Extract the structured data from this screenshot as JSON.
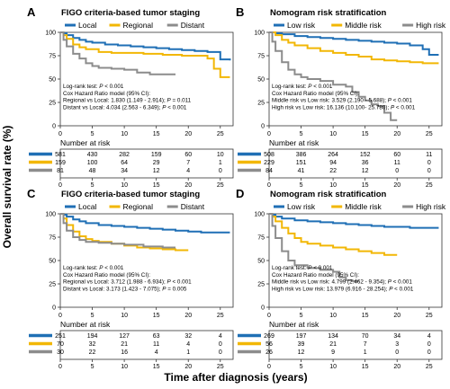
{
  "colors": {
    "blue": "#1f6fb5",
    "yellow": "#f2b705",
    "gray": "#8c8c8c",
    "text": "#000000",
    "axis": "#333333"
  },
  "figure": {
    "ylabel": "Overall survival rate (%)",
    "xlabel": "Time after diagnosis (years)"
  },
  "chart_data": [
    {
      "panel": "A",
      "type": "line",
      "title": "FIGO criteria-based tumor staging",
      "xlim": [
        0,
        27
      ],
      "ylim": [
        0,
        100
      ],
      "xticks": [
        0,
        5,
        10,
        15,
        20,
        25
      ],
      "yticks": [
        "0",
        "25",
        "50",
        "75",
        "100"
      ],
      "series": [
        {
          "name": "Local",
          "color": "blue",
          "points": [
            [
              0,
              100
            ],
            [
              0.5,
              99
            ],
            [
              1,
              97
            ],
            [
              2,
              94
            ],
            [
              3,
              92
            ],
            [
              4,
              90
            ],
            [
              5,
              89
            ],
            [
              7,
              87
            ],
            [
              9,
              86
            ],
            [
              11,
              85
            ],
            [
              13,
              84
            ],
            [
              15,
              83
            ],
            [
              17,
              82
            ],
            [
              19,
              81
            ],
            [
              21,
              80
            ],
            [
              23,
              79
            ],
            [
              25,
              71
            ],
            [
              26.5,
              70
            ]
          ]
        },
        {
          "name": "Regional",
          "color": "yellow",
          "points": [
            [
              0,
              100
            ],
            [
              0.5,
              97
            ],
            [
              1,
              93
            ],
            [
              2,
              87
            ],
            [
              3,
              84
            ],
            [
              4,
              82
            ],
            [
              6,
              79
            ],
            [
              8,
              78
            ],
            [
              10,
              78
            ],
            [
              13,
              77
            ],
            [
              16,
              76
            ],
            [
              19,
              75
            ],
            [
              21,
              75
            ],
            [
              22,
              75
            ],
            [
              23,
              72
            ],
            [
              24,
              61
            ],
            [
              25,
              52
            ],
            [
              26.5,
              52
            ]
          ]
        },
        {
          "name": "Distant",
          "color": "gray",
          "points": [
            [
              0,
              100
            ],
            [
              0.5,
              92
            ],
            [
              1,
              85
            ],
            [
              2,
              77
            ],
            [
              3,
              72
            ],
            [
              4,
              67
            ],
            [
              5,
              64
            ],
            [
              6,
              62
            ],
            [
              8,
              61
            ],
            [
              10,
              60
            ],
            [
              12,
              57
            ],
            [
              14,
              55
            ],
            [
              15,
              55
            ],
            [
              17,
              55
            ],
            [
              18,
              55
            ],
            [
              18,
              55
            ]
          ]
        }
      ],
      "stats": [
        "Log-rank test: P < 0.001",
        "Cox Hazard Ratio model (95% CI):",
        "Regional vs Local: 1.830 (1.149 - 2.914); P = 0.011",
        "Distant vs Local: 4.034 (2.563 - 6.349); P < 0.001"
      ],
      "risk_title": "Number at risk",
      "risk_rows": [
        {
          "color": "blue",
          "values": [
            "581",
            "430",
            "282",
            "159",
            "60",
            "10"
          ]
        },
        {
          "color": "yellow",
          "values": [
            "159",
            "100",
            "64",
            "29",
            "7",
            "1"
          ]
        },
        {
          "color": "gray",
          "values": [
            "81",
            "48",
            "34",
            "12",
            "4",
            "0"
          ]
        }
      ]
    },
    {
      "panel": "B",
      "type": "line",
      "title": "Nomogram risk stratification",
      "xlim": [
        0,
        27
      ],
      "ylim": [
        0,
        100
      ],
      "xticks": [
        0,
        5,
        10,
        15,
        20,
        25
      ],
      "yticks": [
        "0",
        "25",
        "50",
        "75",
        "100"
      ],
      "series": [
        {
          "name": "Low risk",
          "color": "blue",
          "points": [
            [
              0,
              100
            ],
            [
              1,
              99
            ],
            [
              2,
              98
            ],
            [
              4,
              96
            ],
            [
              6,
              95
            ],
            [
              8,
              94
            ],
            [
              10,
              93
            ],
            [
              12,
              92
            ],
            [
              14,
              91
            ],
            [
              16,
              90
            ],
            [
              18,
              89
            ],
            [
              20,
              88
            ],
            [
              22,
              86
            ],
            [
              24,
              82
            ],
            [
              25,
              76
            ],
            [
              26.5,
              76
            ]
          ]
        },
        {
          "name": "Middle risk",
          "color": "yellow",
          "points": [
            [
              0,
              100
            ],
            [
              1,
              97
            ],
            [
              2,
              92
            ],
            [
              3,
              89
            ],
            [
              4,
              86
            ],
            [
              6,
              83
            ],
            [
              8,
              80
            ],
            [
              10,
              78
            ],
            [
              12,
              76
            ],
            [
              14,
              74
            ],
            [
              16,
              71
            ],
            [
              18,
              70
            ],
            [
              20,
              69
            ],
            [
              22,
              68
            ],
            [
              24,
              67
            ],
            [
              26.5,
              67
            ]
          ]
        },
        {
          "name": "High risk",
          "color": "gray",
          "points": [
            [
              0,
              100
            ],
            [
              0.5,
              90
            ],
            [
              1,
              80
            ],
            [
              2,
              68
            ],
            [
              3,
              60
            ],
            [
              4,
              55
            ],
            [
              5,
              52
            ],
            [
              6,
              50
            ],
            [
              8,
              48
            ],
            [
              10,
              44
            ],
            [
              12,
              42
            ],
            [
              13,
              36
            ],
            [
              14,
              31
            ],
            [
              15,
              27
            ],
            [
              16,
              23
            ],
            [
              17,
              21
            ],
            [
              18,
              14
            ],
            [
              19,
              6
            ],
            [
              20,
              6
            ]
          ]
        }
      ],
      "stats": [
        "Log-rank test: P < 0.001",
        "Cox Hazard Ratio model (95% CI):",
        "Middle risk vs Low risk: 3.529 (2.190 - 5.688); P < 0.001",
        "High risk  vs Low risk: 16.136 (10.100- 25.780); P < 0.001"
      ],
      "risk_title": "Number at risk",
      "risk_rows": [
        {
          "color": "blue",
          "values": [
            "508",
            "386",
            "264",
            "152",
            "60",
            "11"
          ]
        },
        {
          "color": "yellow",
          "values": [
            "229",
            "151",
            "94",
            "36",
            "11",
            "0"
          ]
        },
        {
          "color": "gray",
          "values": [
            "84",
            "41",
            "22",
            "12",
            "0",
            "0"
          ]
        }
      ]
    },
    {
      "panel": "C",
      "type": "line",
      "title": "FIGO criteria-based tumor staging",
      "xlim": [
        0,
        27
      ],
      "ylim": [
        0,
        100
      ],
      "xticks": [
        0,
        5,
        10,
        15,
        20,
        25
      ],
      "yticks": [
        "0",
        "25",
        "50",
        "75",
        "100"
      ],
      "series": [
        {
          "name": "Local",
          "color": "blue",
          "points": [
            [
              0,
              100
            ],
            [
              0.5,
              99
            ],
            [
              1,
              97
            ],
            [
              2,
              94
            ],
            [
              3,
              92
            ],
            [
              4,
              90
            ],
            [
              6,
              88
            ],
            [
              8,
              87
            ],
            [
              10,
              86
            ],
            [
              12,
              85
            ],
            [
              14,
              84
            ],
            [
              16,
              83
            ],
            [
              18,
              82
            ],
            [
              20,
              81
            ],
            [
              22,
              80
            ],
            [
              24,
              80
            ],
            [
              26.5,
              80
            ]
          ]
        },
        {
          "name": "Regional",
          "color": "yellow",
          "points": [
            [
              0,
              100
            ],
            [
              0.5,
              95
            ],
            [
              1,
              88
            ],
            [
              2,
              81
            ],
            [
              3,
              76
            ],
            [
              4,
              73
            ],
            [
              5,
              71
            ],
            [
              6,
              70
            ],
            [
              8,
              68
            ],
            [
              10,
              66
            ],
            [
              12,
              64
            ],
            [
              14,
              63
            ],
            [
              16,
              62
            ],
            [
              18,
              61
            ],
            [
              20,
              61
            ]
          ]
        },
        {
          "name": "Distant",
          "color": "gray",
          "points": [
            [
              0,
              100
            ],
            [
              0.5,
              90
            ],
            [
              1,
              82
            ],
            [
              2,
              75
            ],
            [
              3,
              72
            ],
            [
              4,
              70
            ],
            [
              6,
              69
            ],
            [
              8,
              68
            ],
            [
              10,
              67
            ],
            [
              12,
              67
            ],
            [
              13,
              65
            ],
            [
              15,
              65
            ],
            [
              16,
              64
            ],
            [
              18,
              64
            ]
          ]
        }
      ],
      "stats": [
        "Log-rank test: P < 0.001",
        "Cox Hazard Ratio model (95% CI):",
        "Regional vs Local: 3.712 (1.988 - 6.934); P < 0.001",
        "Distant vs Local: 3.173 (1.423 - 7.075); P = 0.005"
      ],
      "risk_title": "Number at risk",
      "risk_rows": [
        {
          "color": "blue",
          "values": [
            "251",
            "194",
            "127",
            "63",
            "32",
            "4"
          ]
        },
        {
          "color": "yellow",
          "values": [
            "70",
            "32",
            "21",
            "11",
            "4",
            "0"
          ]
        },
        {
          "color": "gray",
          "values": [
            "30",
            "22",
            "16",
            "4",
            "1",
            "0"
          ]
        }
      ]
    },
    {
      "panel": "D",
      "type": "line",
      "title": "Nomogram risk stratification",
      "xlim": [
        0,
        27
      ],
      "ylim": [
        0,
        100
      ],
      "xticks": [
        0,
        5,
        10,
        15,
        20,
        25
      ],
      "yticks": [
        "0",
        "25",
        "50",
        "75",
        "100"
      ],
      "series": [
        {
          "name": "Low risk",
          "color": "blue",
          "points": [
            [
              0,
              100
            ],
            [
              0.5,
              99
            ],
            [
              1,
              97
            ],
            [
              2,
              95
            ],
            [
              4,
              93
            ],
            [
              6,
              92
            ],
            [
              8,
              91
            ],
            [
              10,
              90
            ],
            [
              12,
              89
            ],
            [
              14,
              88
            ],
            [
              16,
              87
            ],
            [
              18,
              86
            ],
            [
              20,
              86
            ],
            [
              22,
              85
            ],
            [
              24,
              85
            ],
            [
              26.5,
              85
            ]
          ]
        },
        {
          "name": "Middle risk",
          "color": "yellow",
          "points": [
            [
              0,
              100
            ],
            [
              0.5,
              97
            ],
            [
              1,
              92
            ],
            [
              2,
              85
            ],
            [
              3,
              79
            ],
            [
              4,
              74
            ],
            [
              5,
              70
            ],
            [
              6,
              68
            ],
            [
              8,
              66
            ],
            [
              10,
              64
            ],
            [
              12,
              62
            ],
            [
              14,
              60
            ],
            [
              16,
              58
            ],
            [
              18,
              56
            ],
            [
              20,
              56
            ]
          ]
        },
        {
          "name": "High risk",
          "color": "gray",
          "points": [
            [
              0,
              100
            ],
            [
              0.5,
              87
            ],
            [
              1,
              74
            ],
            [
              2,
              60
            ],
            [
              3,
              50
            ],
            [
              4,
              45
            ],
            [
              6,
              42
            ],
            [
              8,
              40
            ],
            [
              10,
              38
            ],
            [
              11,
              32
            ],
            [
              12,
              29
            ],
            [
              13,
              28
            ],
            [
              14,
              28
            ]
          ]
        }
      ],
      "stats": [
        "Log-rank test: P < 0.001",
        "Cox Hazard Ratio model (95% CI):",
        "Middle risk vs Low risk: 4.799 (2.462 - 9.354); P < 0.001",
        "High risk  vs Low risk: 13.979 (6.916 - 28.254); P < 0.001"
      ],
      "risk_title": "Number at risk",
      "risk_rows": [
        {
          "color": "blue",
          "values": [
            "269",
            "197",
            "134",
            "70",
            "34",
            "4"
          ]
        },
        {
          "color": "yellow",
          "values": [
            "56",
            "39",
            "21",
            "7",
            "3",
            "0"
          ]
        },
        {
          "color": "gray",
          "values": [
            "26",
            "12",
            "9",
            "1",
            "0",
            "0"
          ]
        }
      ]
    }
  ]
}
